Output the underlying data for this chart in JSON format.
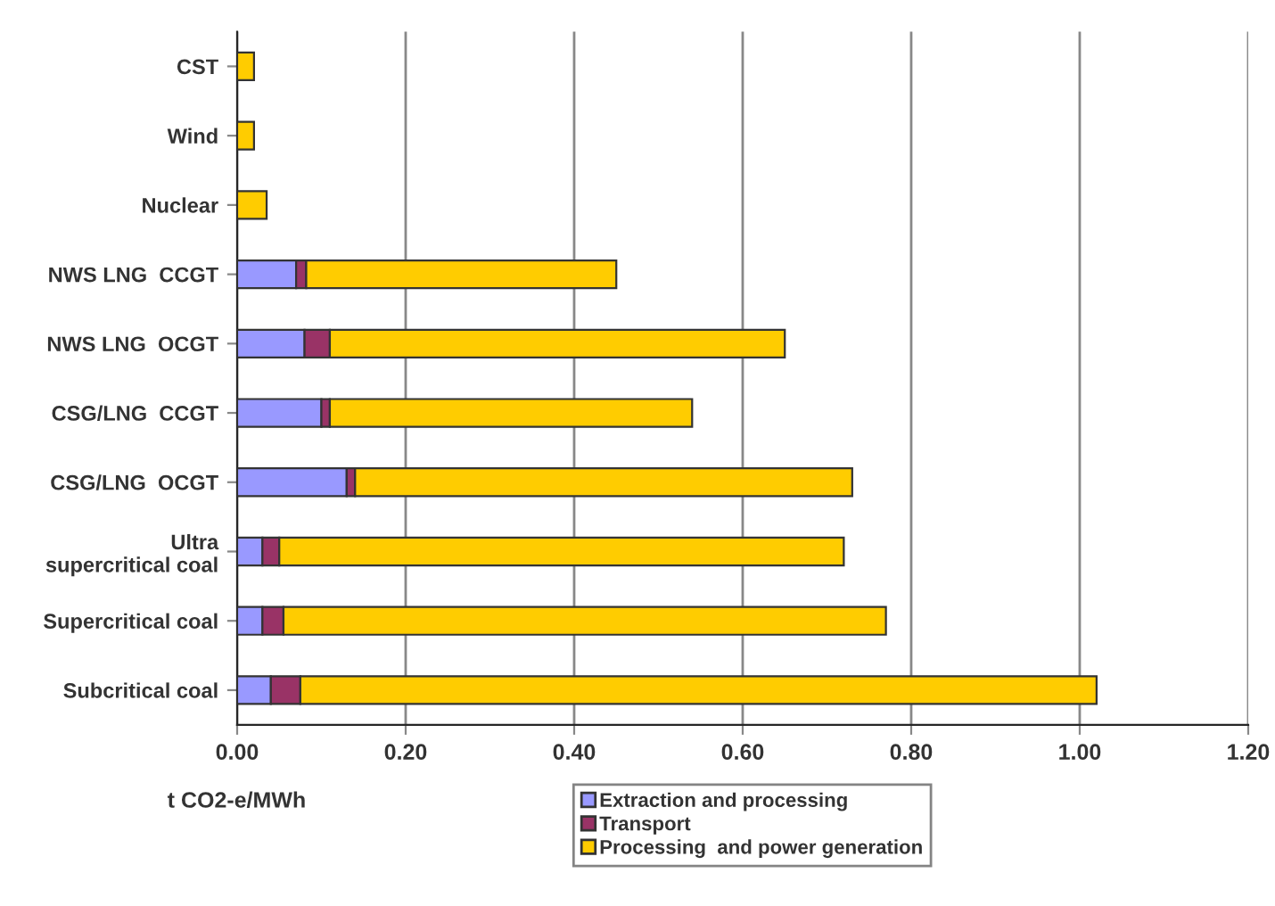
{
  "chart_data": {
    "type": "bar",
    "orientation": "horizontal",
    "stacked": true,
    "xlabel": "t CO2-e/MWh",
    "categories": [
      "CST",
      "Wind",
      "Nuclear",
      "NWS LNG  CCGT",
      "NWS LNG  OCGT",
      "CSG/LNG  CCGT",
      "CSG/LNG  OCGT",
      "Ultra\nsupercritical coal",
      "Supercritical coal",
      "Subcritical coal"
    ],
    "series": [
      {
        "name": "Extraction and processing",
        "color": "#9999ff",
        "values": [
          0,
          0,
          0,
          0.07,
          0.08,
          0.1,
          0.13,
          0.03,
          0.03,
          0.04
        ]
      },
      {
        "name": "Transport",
        "color": "#993366",
        "values": [
          0,
          0,
          0,
          0.012,
          0.03,
          0.01,
          0.01,
          0.02,
          0.025,
          0.035
        ]
      },
      {
        "name": "Processing  and power generation",
        "color": "#ffcc00",
        "values": [
          0.02,
          0.02,
          0.035,
          0.368,
          0.54,
          0.43,
          0.59,
          0.67,
          0.715,
          0.945
        ]
      }
    ],
    "xlim": [
      0,
      1.2
    ],
    "xticks": [
      {
        "value": 0,
        "label": "0.00"
      },
      {
        "value": 0.2,
        "label": "0.20"
      },
      {
        "value": 0.4,
        "label": "0.40"
      },
      {
        "value": 0.6,
        "label": "0.60"
      },
      {
        "value": 0.8,
        "label": "0.80"
      },
      {
        "value": 1.0,
        "label": "1.00"
      },
      {
        "value": 1.2,
        "label": "1.20"
      }
    ],
    "grid": "x",
    "legend": "bottom"
  }
}
